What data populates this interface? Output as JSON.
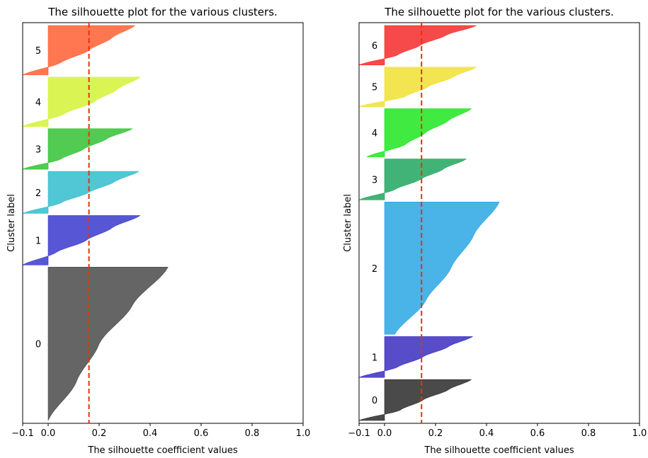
{
  "chart_data": [
    {
      "type": "silhouette",
      "title": "The silhouette plot for the various clusters.",
      "xlabel": "The silhouette coefficient values",
      "ylabel": "Cluster label",
      "xlim": [
        -0.1,
        1.0
      ],
      "xticks": [
        "−0.1",
        "0.0",
        "0.2",
        "0.4",
        "0.6",
        "0.8",
        "1.0"
      ],
      "xtick_values": [
        -0.1,
        0.0,
        0.2,
        0.4,
        0.6,
        0.8,
        1.0
      ],
      "average_silhouette": 0.16,
      "clusters": [
        {
          "label": "0",
          "color": "#4a4a4a",
          "max": 0.47,
          "min": 0.0,
          "p25": 0.11,
          "p50": 0.2,
          "p75": 0.33,
          "size": 3.1
        },
        {
          "label": "1",
          "color": "#3a3ace",
          "max": 0.36,
          "min": -0.1,
          "p25": 0.03,
          "p50": 0.15,
          "p75": 0.25,
          "size": 1.0
        },
        {
          "label": "2",
          "color": "#33bccc",
          "max": 0.355,
          "min": -0.1,
          "p25": 0.05,
          "p50": 0.16,
          "p75": 0.26,
          "size": 0.85
        },
        {
          "label": "3",
          "color": "#33c233",
          "max": 0.33,
          "min": -0.1,
          "p25": 0.05,
          "p50": 0.14,
          "p75": 0.23,
          "size": 0.82
        },
        {
          "label": "4",
          "color": "#d4f235",
          "max": 0.36,
          "min": -0.1,
          "p25": 0.06,
          "p50": 0.18,
          "p75": 0.27,
          "size": 1.0
        },
        {
          "label": "5",
          "color": "#ff5f33",
          "max": 0.34,
          "min": -0.1,
          "p25": 0.05,
          "p50": 0.16,
          "p75": 0.25,
          "size": 1.0
        }
      ]
    },
    {
      "type": "silhouette",
      "title": "The silhouette plot for the various clusters.",
      "xlabel": "The silhouette coefficient values",
      "ylabel": "Cluster label",
      "xlim": [
        -0.1,
        1.0
      ],
      "xticks": [
        "−0.1",
        "0.0",
        "0.2",
        "0.4",
        "0.6",
        "0.8",
        "1.0"
      ],
      "xtick_values": [
        -0.1,
        0.0,
        0.2,
        0.4,
        0.6,
        0.8,
        1.0
      ],
      "average_silhouette": 0.145,
      "clusters": [
        {
          "label": "0",
          "color": "#2a2a2a",
          "max": 0.34,
          "min": -0.1,
          "p25": 0.06,
          "p50": 0.15,
          "p75": 0.25,
          "size": 0.85
        },
        {
          "label": "1",
          "color": "#3a2ebf",
          "max": 0.345,
          "min": -0.1,
          "p25": 0.05,
          "p50": 0.15,
          "p75": 0.25,
          "size": 0.85
        },
        {
          "label": "2",
          "color": "#2aa6e3",
          "max": 0.45,
          "min": 0.04,
          "p25": 0.16,
          "p50": 0.26,
          "p75": 0.35,
          "size": 2.75
        },
        {
          "label": "3",
          "color": "#21a65e",
          "max": 0.32,
          "min": -0.1,
          "p25": 0.04,
          "p50": 0.14,
          "p75": 0.23,
          "size": 0.85
        },
        {
          "label": "4",
          "color": "#1ee61e",
          "max": 0.34,
          "min": -0.07,
          "p25": 0.08,
          "p50": 0.16,
          "p75": 0.25,
          "size": 1.0
        },
        {
          "label": "5",
          "color": "#f0e030",
          "max": 0.36,
          "min": -0.1,
          "p25": 0.08,
          "p50": 0.17,
          "p75": 0.27,
          "size": 0.82
        },
        {
          "label": "6",
          "color": "#f52a2a",
          "max": 0.36,
          "min": -0.1,
          "p25": 0.05,
          "p50": 0.14,
          "p75": 0.24,
          "size": 0.82
        }
      ]
    }
  ]
}
